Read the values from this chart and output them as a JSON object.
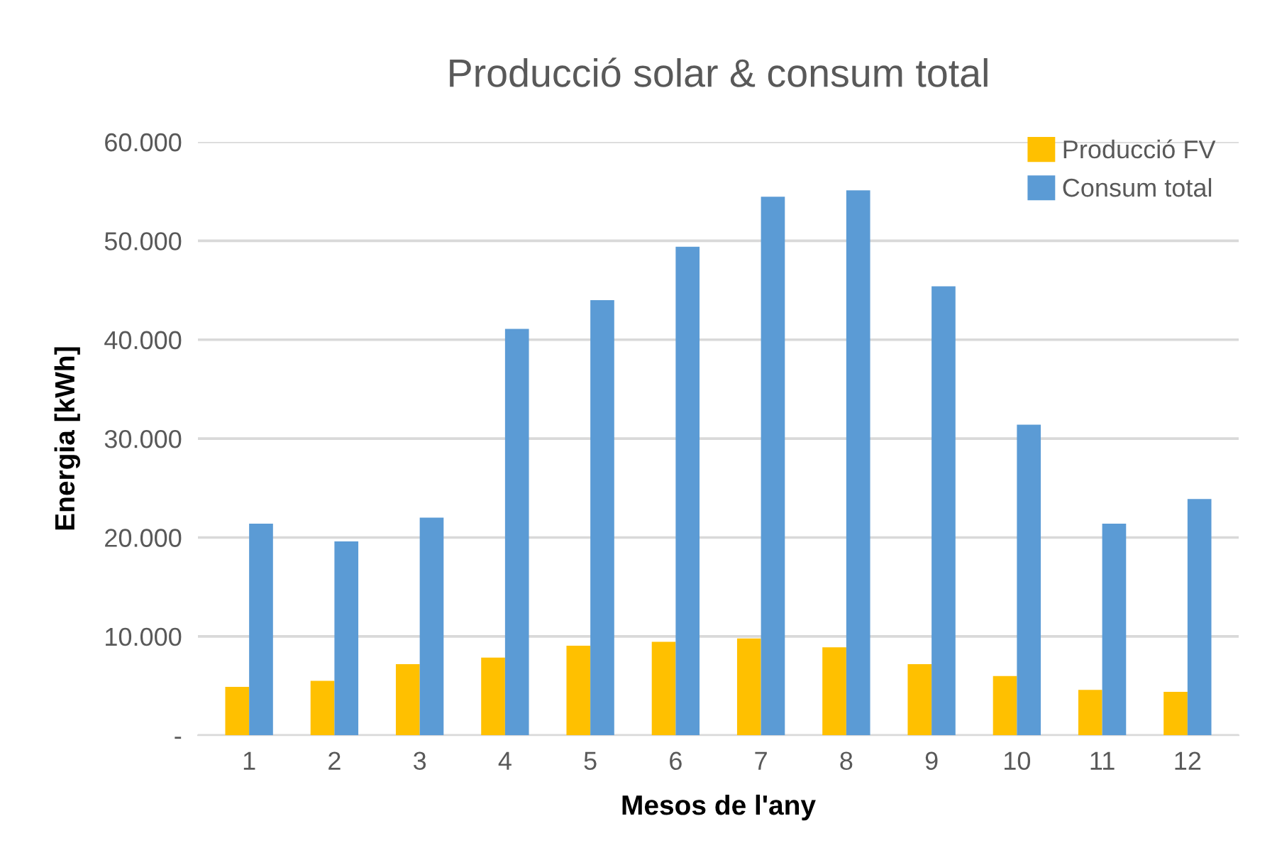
{
  "chart_data": {
    "type": "bar",
    "title": "Producció solar & consum total",
    "xlabel": "Mesos de l'any",
    "ylabel": "Energia [kWh]",
    "categories": [
      "1",
      "2",
      "3",
      "4",
      "5",
      "6",
      "7",
      "8",
      "9",
      "10",
      "11",
      "12"
    ],
    "series": [
      {
        "name": "Producció FV",
        "color": "#ffc000",
        "values": [
          4900,
          5500,
          7200,
          7850,
          9050,
          9450,
          9800,
          8900,
          7200,
          6000,
          4600,
          4400
        ]
      },
      {
        "name": "Consum total",
        "color": "#5b9bd5",
        "values": [
          21400,
          19600,
          22000,
          41100,
          44000,
          49400,
          54450,
          55100,
          45400,
          31400,
          21400,
          23900
        ]
      }
    ],
    "ylim": [
      0,
      60000
    ],
    "yticks": [
      {
        "value": 0,
        "label": "-"
      },
      {
        "value": 10000,
        "label": "10.000"
      },
      {
        "value": 20000,
        "label": "20.000"
      },
      {
        "value": 30000,
        "label": "30.000"
      },
      {
        "value": 40000,
        "label": "40.000"
      },
      {
        "value": 50000,
        "label": "50.000"
      },
      {
        "value": 60000,
        "label": "60.000"
      }
    ],
    "grid": "y",
    "legend": "top right"
  }
}
